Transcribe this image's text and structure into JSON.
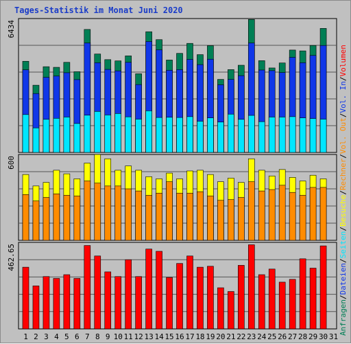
{
  "chart_data": {
    "type": "bar",
    "title": "Tages-Statistik im Monat Juni 2020",
    "categories": [
      "1",
      "2",
      "3",
      "4",
      "5",
      "6",
      "7",
      "8",
      "9",
      "10",
      "11",
      "12",
      "13",
      "14",
      "15",
      "16",
      "17",
      "18",
      "19",
      "20",
      "21",
      "22",
      "23",
      "24",
      "25",
      "26",
      "27",
      "28",
      "29",
      "30",
      "31"
    ],
    "weekend_days": [
      "6",
      "7",
      "13",
      "14",
      "20",
      "21",
      "27",
      "28"
    ],
    "panels": [
      {
        "name": "requests",
        "ymax_label": "6434",
        "ylim": [
          0,
          6434
        ],
        "series": [
          {
            "name": "Anfragen",
            "color": "#007f55",
            "values": [
              4380,
              3230,
              4120,
              4090,
              4330,
              3880,
              5910,
              4730,
              4460,
              4400,
              4640,
              3780,
              5800,
              5420,
              4440,
              4760,
              5240,
              4700,
              5130,
              3510,
              3980,
              4190,
              6390,
              4410,
              4060,
              4300,
              4920,
              4880,
              5140,
              5960,
              0
            ]
          },
          {
            "name": "Dateien",
            "color": "#1037e8",
            "values": [
              3970,
              2830,
              3610,
              3670,
              3830,
              3500,
              5260,
              4310,
              3990,
              3920,
              4330,
              3260,
              5330,
              4930,
              3950,
              3980,
              4470,
              4220,
              4480,
              3250,
              3510,
              3690,
              5260,
              3960,
              3930,
              3840,
              4570,
              4310,
              4660,
              5140,
              0
            ]
          },
          {
            "name": "Seiten",
            "color": "#00e6ff",
            "values": [
              1820,
              1180,
              1590,
              1640,
              1700,
              1390,
              1790,
              1970,
              1800,
              1870,
              1710,
              1600,
              2000,
              1680,
              1690,
              1680,
              1720,
              1500,
              1660,
              1460,
              1840,
              1590,
              1780,
              1480,
              1700,
              1700,
              1720,
              1660,
              1630,
              1600,
              0
            ]
          }
        ]
      },
      {
        "name": "visits",
        "ymax_label": "600",
        "ylim": [
          0,
          600
        ],
        "series": [
          {
            "name": "Besuche",
            "color": "#ffff00",
            "values": [
              460,
              380,
              405,
              490,
              465,
              430,
              540,
              600,
              570,
              490,
              520,
              490,
              445,
              430,
              470,
              430,
              485,
              490,
              460,
              410,
              435,
              405,
              570,
              490,
              450,
              495,
              440,
              415,
              455,
              430,
              0
            ]
          },
          {
            "name": "Rechner",
            "color": "#ff8c00",
            "values": [
              320,
              275,
              300,
              325,
              315,
              310,
              415,
              400,
              380,
              380,
              360,
              345,
              315,
              330,
              410,
              330,
              330,
              340,
              310,
              280,
              285,
              300,
              410,
              345,
              355,
              385,
              335,
              315,
              370,
              370,
              0
            ]
          }
        ]
      },
      {
        "name": "volume",
        "ymax_label": "462.65",
        "ylim": [
          0,
          462.65
        ],
        "series": [
          {
            "name": "Volumen",
            "color": "#ff0000",
            "values": [
              330,
              230,
              280,
              270,
              290,
              270,
              446,
              390,
              305,
              280,
              370,
              280,
              427,
              415,
              275,
              350,
              390,
              330,
              335,
              220,
              200,
              340,
              450,
              290,
              320,
              250,
              265,
              375,
              325,
              444,
              0
            ]
          }
        ]
      }
    ],
    "right_labels": [
      {
        "text": "Anfragen",
        "color": "#007f55"
      },
      {
        "text": "/",
        "color": "#000000"
      },
      {
        "text": "Dateien",
        "color": "#1037e8"
      },
      {
        "text": "/",
        "color": "#000000"
      },
      {
        "text": "Seiten",
        "color": "#00e6ff"
      },
      {
        "text": "/",
        "color": "#000000"
      },
      {
        "text": "Besuche",
        "color": "#ffff00"
      },
      {
        "text": "/",
        "color": "#000000"
      },
      {
        "text": "Rechner",
        "color": "#ff8c00"
      },
      {
        "text": "/",
        "color": "#000000"
      },
      {
        "text": "Vol. Out",
        "color": "#ff8c00"
      },
      {
        "text": "/",
        "color": "#000000"
      },
      {
        "text": "Vol. In",
        "color": "#1037e8"
      },
      {
        "text": "/",
        "color": "#000000"
      },
      {
        "text": "Volumen",
        "color": "#ff0000"
      }
    ],
    "colors": {
      "weekday_tick": "#000000",
      "weekend_tick": "#007f55",
      "grid": "#555555",
      "panel_bg": "#c0c0c0"
    }
  }
}
